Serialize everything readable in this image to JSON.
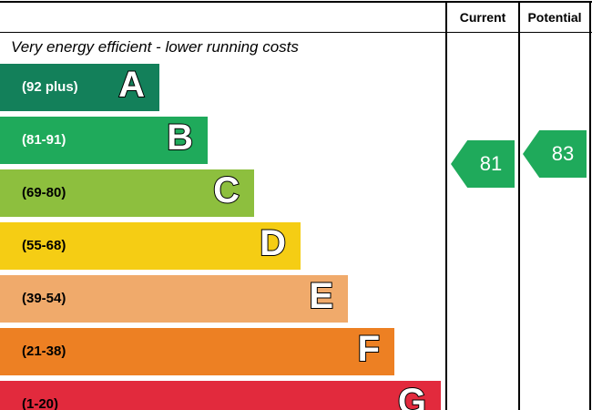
{
  "header": {
    "current_label": "Current",
    "potential_label": "Potential"
  },
  "caption": "Very energy efficient - lower running costs",
  "chart_data": {
    "type": "bar",
    "bands": [
      {
        "letter": "A",
        "range": "(92 plus)",
        "color": "#13805a",
        "text_color": "#ffffff"
      },
      {
        "letter": "B",
        "range": "(81-91)",
        "color": "#1faa5b",
        "text_color": "#ffffff"
      },
      {
        "letter": "C",
        "range": "(69-80)",
        "color": "#8dbf3e",
        "text_color": "#000000"
      },
      {
        "letter": "D",
        "range": "(55-68)",
        "color": "#f5cd14",
        "text_color": "#000000"
      },
      {
        "letter": "E",
        "range": "(39-54)",
        "color": "#f0aa6b",
        "text_color": "#000000"
      },
      {
        "letter": "F",
        "range": "(21-38)",
        "color": "#ed8023",
        "text_color": "#000000"
      },
      {
        "letter": "G",
        "range": "(1-20)",
        "color": "#e22a3d",
        "text_color": "#000000"
      }
    ],
    "current": {
      "value": 81,
      "band": "B"
    },
    "potential": {
      "value": 83,
      "band": "B"
    }
  }
}
